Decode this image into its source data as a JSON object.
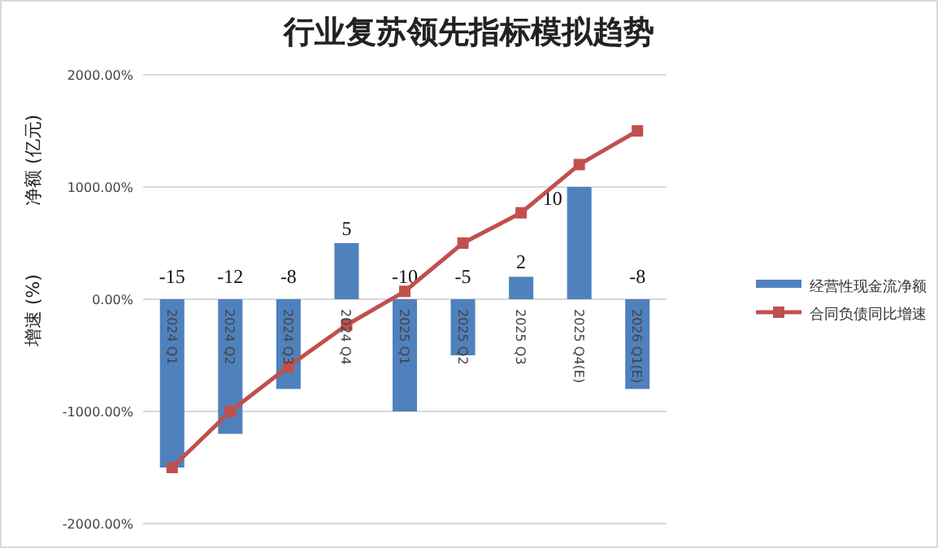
{
  "chart_data": {
    "type": "bar",
    "title": "行业复苏领先指标模拟趋势",
    "ylabel": "增速 (%)",
    "y2label": "净额 (亿元)",
    "categories": [
      "2024 Q1",
      "2024 Q2",
      "2024 Q3",
      "2024 Q4",
      "2025 Q1",
      "2025 Q2",
      "2025 Q3",
      "2025 Q4(E)",
      "2026 Q1(E)"
    ],
    "series": [
      {
        "name": "经营性现金流净额",
        "axis": "y2",
        "color": "#4f81bd",
        "values": [
          -15,
          -12,
          -8,
          5,
          -10,
          -5,
          2,
          10,
          -8
        ],
        "value_labels": [
          "-15",
          "-12",
          "-8",
          "5",
          "-10",
          "-5",
          "2",
          "10",
          "-8"
        ]
      },
      {
        "name": "合同负债同比增速",
        "type": "line",
        "axis": "y",
        "color": "#c0504d",
        "marker": "square",
        "values": [
          -1500,
          -1000,
          -600,
          -230,
          70,
          500,
          770,
          1200,
          1500
        ]
      }
    ],
    "ylim": [
      -2000,
      2000
    ],
    "yticks": [
      {
        "value": 2000,
        "label": "2000.00%"
      },
      {
        "value": 1000,
        "label": "1000.00%"
      },
      {
        "value": 0,
        "label": "0.00%"
      },
      {
        "value": -1000,
        "label": "-1000.00%"
      },
      {
        "value": -2000,
        "label": "-2000.00%"
      }
    ],
    "y2lim": [
      -20,
      20
    ],
    "grid": "y",
    "legend": "right"
  }
}
